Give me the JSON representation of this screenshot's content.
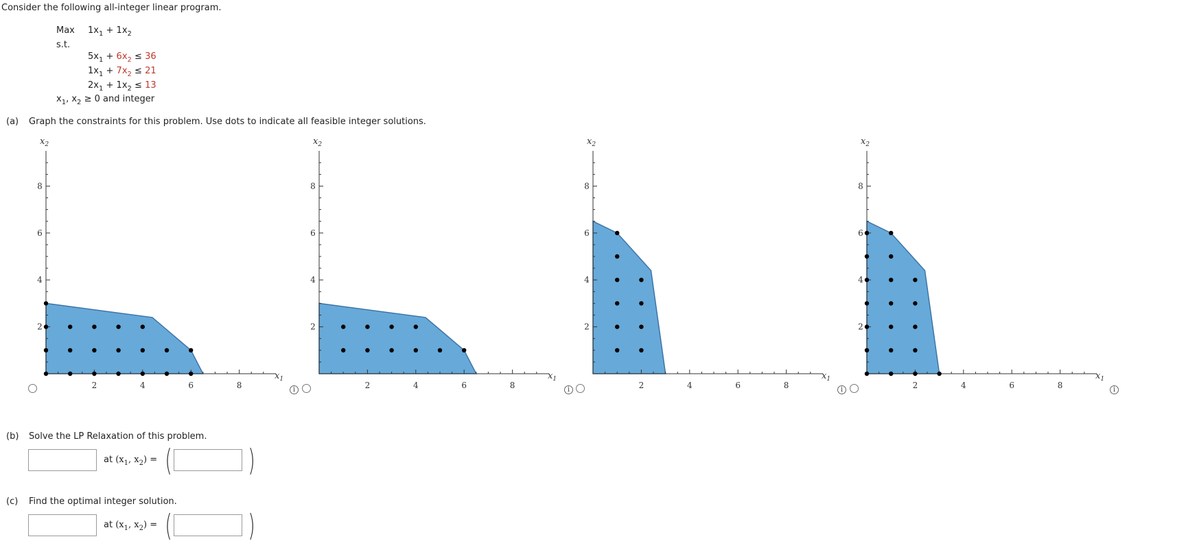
{
  "intro": "Consider the following all-integer linear program.",
  "lp": {
    "objective": {
      "label": "Max",
      "a": "1",
      "b": "1"
    },
    "st_label": "s.t.",
    "constraints": [
      {
        "a": "5",
        "b": "6",
        "sign": "≤",
        "rhs": "36"
      },
      {
        "a": "1",
        "b": "7",
        "sign": "≤",
        "rhs": "21"
      },
      {
        "a": "2",
        "b": "1",
        "sign": "≤",
        "rhs": "13"
      }
    ],
    "nonneg": "≥ 0 and integer"
  },
  "part_a": {
    "label": "(a)",
    "text": "Graph the constraints for this problem. Use dots to indicate all feasible integer solutions."
  },
  "part_b": {
    "label": "(b)",
    "text": "Solve the LP Relaxation of this problem.",
    "at_text": "at",
    "value": "",
    "point_value": ""
  },
  "part_c": {
    "label": "(c)",
    "text": "Find the optimal integer solution.",
    "at_text": "at",
    "value": "",
    "point_value": ""
  },
  "graphs": {
    "x_axis_label": "x",
    "y_axis_label": "x",
    "x_ticks": [
      "2",
      "4",
      "6",
      "8"
    ],
    "y_ticks": [
      "2",
      "4",
      "6",
      "8"
    ],
    "fill_color": "#67a9d8",
    "edge_color": "#3d74a8",
    "options": [
      {
        "region": [
          [
            0,
            0
          ],
          [
            0,
            3
          ],
          [
            4.4,
            2.4
          ],
          [
            6,
            1
          ],
          [
            6.5,
            0
          ]
        ],
        "points": [
          [
            0,
            0
          ],
          [
            1,
            0
          ],
          [
            2,
            0
          ],
          [
            3,
            0
          ],
          [
            4,
            0
          ],
          [
            5,
            0
          ],
          [
            6,
            0
          ],
          [
            0,
            1
          ],
          [
            1,
            1
          ],
          [
            2,
            1
          ],
          [
            3,
            1
          ],
          [
            4,
            1
          ],
          [
            5,
            1
          ],
          [
            6,
            1
          ],
          [
            0,
            2
          ],
          [
            1,
            2
          ],
          [
            2,
            2
          ],
          [
            3,
            2
          ],
          [
            4,
            2
          ],
          [
            0,
            3
          ]
        ]
      },
      {
        "region": [
          [
            0,
            0
          ],
          [
            0,
            3
          ],
          [
            4.4,
            2.4
          ],
          [
            6,
            1
          ],
          [
            6.5,
            0
          ]
        ],
        "points": [
          [
            1,
            1
          ],
          [
            2,
            1
          ],
          [
            3,
            1
          ],
          [
            4,
            1
          ],
          [
            5,
            1
          ],
          [
            6,
            1
          ],
          [
            1,
            2
          ],
          [
            2,
            2
          ],
          [
            3,
            2
          ],
          [
            4,
            2
          ]
        ]
      },
      {
        "region": [
          [
            0,
            0
          ],
          [
            0,
            6.5
          ],
          [
            1,
            6
          ],
          [
            2.4,
            4.4
          ],
          [
            3,
            0
          ]
        ],
        "points": [
          [
            1,
            1
          ],
          [
            2,
            1
          ],
          [
            1,
            2
          ],
          [
            2,
            2
          ],
          [
            1,
            3
          ],
          [
            2,
            3
          ],
          [
            1,
            4
          ],
          [
            2,
            4
          ],
          [
            1,
            5
          ],
          [
            1,
            6
          ]
        ]
      },
      {
        "region": [
          [
            0,
            0
          ],
          [
            0,
            6.5
          ],
          [
            1,
            6
          ],
          [
            2.4,
            4.4
          ],
          [
            3,
            0
          ]
        ],
        "points": [
          [
            0,
            0
          ],
          [
            1,
            0
          ],
          [
            2,
            0
          ],
          [
            3,
            0
          ],
          [
            0,
            1
          ],
          [
            1,
            1
          ],
          [
            2,
            1
          ],
          [
            0,
            2
          ],
          [
            1,
            2
          ],
          [
            2,
            2
          ],
          [
            0,
            3
          ],
          [
            1,
            3
          ],
          [
            2,
            3
          ],
          [
            0,
            4
          ],
          [
            1,
            4
          ],
          [
            2,
            4
          ],
          [
            0,
            5
          ],
          [
            1,
            5
          ],
          [
            0,
            6
          ],
          [
            1,
            6
          ]
        ]
      }
    ]
  }
}
